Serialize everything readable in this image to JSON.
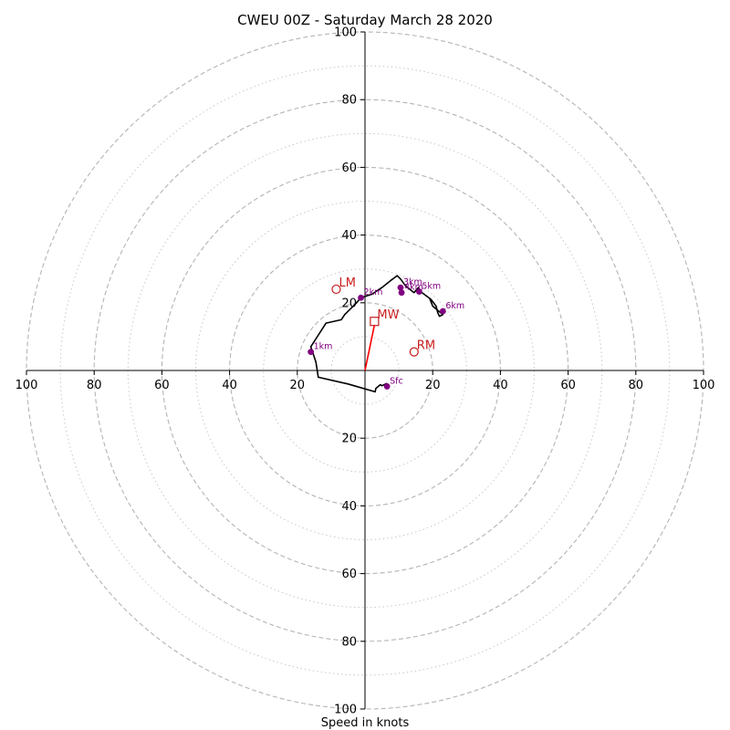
{
  "chart_data": {
    "type": "line",
    "title": "CWEU 00Z - Saturday March 28 2020",
    "xlabel": "Speed in knots",
    "ylabel": "",
    "xlim": [
      -100,
      100
    ],
    "ylim": [
      -100,
      100
    ],
    "tick_labels": [
      "100",
      "80",
      "60",
      "40",
      "20",
      "20",
      "40",
      "60",
      "80",
      "100"
    ],
    "tick_values": [
      -100,
      -80,
      -60,
      -40,
      -20,
      20,
      40,
      60,
      80,
      100
    ],
    "rings_dashed": [
      20,
      40,
      60,
      80,
      100
    ],
    "rings_dotted": [
      10,
      30,
      50,
      70,
      90
    ],
    "series": [
      {
        "type": "line",
        "color": "#000000",
        "x": [
          6.5,
          5.0,
          4.5,
          3.2,
          3.0,
          -5.0,
          -13.8,
          -14.5,
          -15.5,
          -16.0,
          -11.5,
          -7.0,
          -6.0,
          -4.0,
          -2.5,
          -1.2,
          2.0,
          5.0,
          7.5,
          9.5,
          10.5,
          12.0,
          13.2,
          14.5,
          15.8,
          16.5,
          17.5,
          19.5,
          21.0,
          21.5,
          22.0,
          23.0,
          20.0,
          19.0
        ],
        "y": [
          -3.8,
          -4.5,
          -4.2,
          -5.3,
          -6.3,
          -4.0,
          -2.0,
          2.5,
          5.5,
          7.0,
          14.0,
          15.0,
          16.5,
          18.5,
          20.0,
          21.5,
          22.5,
          24.5,
          26.5,
          28.0,
          27.0,
          25.0,
          24.0,
          23.0,
          24.5,
          23.2,
          22.5,
          21.0,
          19.0,
          17.0,
          16.0,
          16.5,
          19.0,
          21.5
        ]
      },
      {
        "type": "line",
        "color": "#ff0000",
        "x": [
          0.0,
          2.8
        ],
        "y": [
          0.0,
          13.5
        ]
      }
    ],
    "height_markers": {
      "color": "#800080",
      "points": [
        {
          "label": "Sfc",
          "x": 6.5,
          "y": -4.7
        },
        {
          "label": "1km",
          "x": -16.0,
          "y": 5.5
        },
        {
          "label": "2km",
          "x": -1.2,
          "y": 21.5
        },
        {
          "label": "3km",
          "x": 10.5,
          "y": 24.5
        },
        {
          "label": "4km",
          "x": 10.8,
          "y": 23.0
        },
        {
          "label": "5km",
          "x": 16.0,
          "y": 23.3
        },
        {
          "label": "6km",
          "x": 23.0,
          "y": 17.5
        }
      ]
    },
    "motion_markers": {
      "color": "#c81e1e",
      "points": [
        {
          "label": "LM",
          "shape": "circle",
          "x": -8.5,
          "y": 24.0
        },
        {
          "label": "MW",
          "shape": "square",
          "x": 2.8,
          "y": 14.5
        },
        {
          "label": "RM",
          "shape": "circle",
          "x": 14.5,
          "y": 5.5
        }
      ]
    },
    "grid": true,
    "legend": "none"
  }
}
